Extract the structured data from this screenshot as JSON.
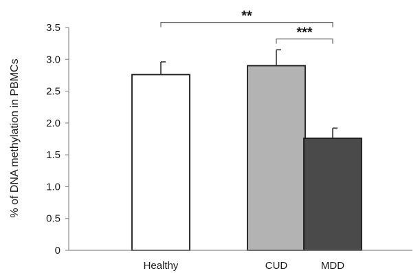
{
  "chart_data": {
    "type": "bar",
    "title": "",
    "xlabel": "",
    "ylabel": "% of DNA methylation in PBMCs",
    "ylim": [
      0,
      3.5
    ],
    "yticks": [
      0,
      0.5,
      1.0,
      1.5,
      2.0,
      2.5,
      3.0,
      3.5
    ],
    "ytick_labels": [
      "0",
      "0.5",
      "1.0",
      "1.5",
      "2.0",
      "2.5",
      "3.0",
      "3.5"
    ],
    "grid": false,
    "legend": "none",
    "categories": [
      "Healthy",
      "CUD",
      "MDD"
    ],
    "values": [
      2.76,
      2.9,
      1.76
    ],
    "errors": [
      0.2,
      0.25,
      0.16
    ],
    "colors": [
      "#ffffff",
      "#b3b3b3",
      "#4a4a4a"
    ],
    "significance": [
      {
        "from": "Healthy",
        "to": "MDD",
        "label": "**",
        "y": 3.58
      },
      {
        "from": "CUD",
        "to": "MDD",
        "label": "***",
        "y": 3.32
      }
    ]
  }
}
